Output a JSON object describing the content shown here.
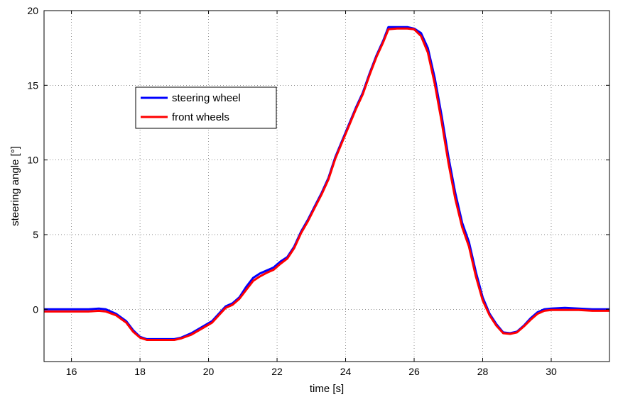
{
  "chart_data": {
    "type": "line",
    "xlabel": "time [s]",
    "ylabel": "steering angle [°]",
    "xlim": [
      15.2,
      31.7
    ],
    "ylim": [
      -3.5,
      20
    ],
    "xticks": [
      16,
      18,
      20,
      22,
      24,
      26,
      28,
      30
    ],
    "yticks": [
      0,
      5,
      10,
      15,
      20
    ],
    "grid": true,
    "legend_position": "upper-left",
    "series": [
      {
        "name": "steering wheel",
        "color": "#0000ff",
        "x": [
          15.2,
          16.0,
          16.5,
          16.8,
          17.0,
          17.3,
          17.6,
          17.8,
          18.0,
          18.2,
          18.6,
          19.0,
          19.2,
          19.5,
          19.8,
          20.1,
          20.3,
          20.5,
          20.7,
          20.9,
          21.1,
          21.3,
          21.5,
          21.7,
          21.9,
          22.1,
          22.3,
          22.5,
          22.7,
          22.9,
          23.1,
          23.3,
          23.5,
          23.7,
          23.9,
          24.1,
          24.3,
          24.5,
          24.7,
          24.9,
          25.1,
          25.25,
          25.5,
          25.8,
          26.0,
          26.2,
          26.4,
          26.6,
          26.8,
          27.0,
          27.2,
          27.4,
          27.6,
          27.8,
          28.0,
          28.2,
          28.4,
          28.6,
          28.8,
          29.0,
          29.2,
          29.4,
          29.6,
          29.8,
          30.0,
          30.4,
          30.8,
          31.2,
          31.7
        ],
        "y": [
          0.0,
          0.0,
          0.0,
          0.05,
          0.0,
          -0.3,
          -0.8,
          -1.4,
          -1.85,
          -2.0,
          -2.0,
          -2.0,
          -1.9,
          -1.6,
          -1.2,
          -0.8,
          -0.3,
          0.2,
          0.4,
          0.8,
          1.5,
          2.1,
          2.4,
          2.6,
          2.8,
          3.2,
          3.5,
          4.2,
          5.2,
          6.0,
          6.9,
          7.8,
          8.8,
          10.2,
          11.3,
          12.4,
          13.5,
          14.5,
          15.8,
          17.0,
          18.0,
          18.9,
          18.9,
          18.9,
          18.8,
          18.5,
          17.5,
          15.5,
          13.0,
          10.2,
          7.8,
          5.8,
          4.5,
          2.5,
          0.8,
          -0.3,
          -1.0,
          -1.55,
          -1.6,
          -1.5,
          -1.1,
          -0.6,
          -0.2,
          0.0,
          0.05,
          0.1,
          0.05,
          0.0,
          0.0
        ]
      },
      {
        "name": "front wheels",
        "color": "#ff0000",
        "x": [
          15.2,
          16.0,
          16.5,
          16.8,
          17.0,
          17.3,
          17.6,
          17.8,
          18.0,
          18.2,
          18.6,
          19.0,
          19.2,
          19.5,
          19.8,
          20.1,
          20.3,
          20.5,
          20.7,
          20.9,
          21.1,
          21.3,
          21.5,
          21.7,
          21.9,
          22.1,
          22.3,
          22.5,
          22.7,
          22.9,
          23.1,
          23.3,
          23.5,
          23.7,
          23.9,
          24.1,
          24.3,
          24.5,
          24.7,
          24.9,
          25.1,
          25.25,
          25.5,
          25.8,
          26.0,
          26.2,
          26.4,
          26.6,
          26.8,
          27.0,
          27.2,
          27.4,
          27.6,
          27.8,
          28.0,
          28.2,
          28.4,
          28.6,
          28.8,
          29.0,
          29.2,
          29.4,
          29.6,
          29.8,
          30.0,
          30.4,
          30.8,
          31.2,
          31.7
        ],
        "y": [
          -0.15,
          -0.15,
          -0.15,
          -0.1,
          -0.15,
          -0.4,
          -0.9,
          -1.5,
          -1.9,
          -2.05,
          -2.05,
          -2.05,
          -1.95,
          -1.7,
          -1.3,
          -0.9,
          -0.4,
          0.1,
          0.3,
          0.7,
          1.3,
          1.9,
          2.2,
          2.45,
          2.65,
          3.05,
          3.4,
          4.1,
          5.1,
          5.9,
          6.8,
          7.7,
          8.7,
          10.1,
          11.2,
          12.3,
          13.4,
          14.4,
          15.7,
          16.9,
          17.9,
          18.75,
          18.8,
          18.8,
          18.75,
          18.3,
          17.2,
          15.1,
          12.6,
          9.8,
          7.4,
          5.5,
          4.2,
          2.2,
          0.6,
          -0.4,
          -1.1,
          -1.6,
          -1.65,
          -1.55,
          -1.15,
          -0.7,
          -0.3,
          -0.1,
          -0.05,
          -0.05,
          -0.05,
          -0.1,
          -0.1
        ]
      }
    ]
  }
}
